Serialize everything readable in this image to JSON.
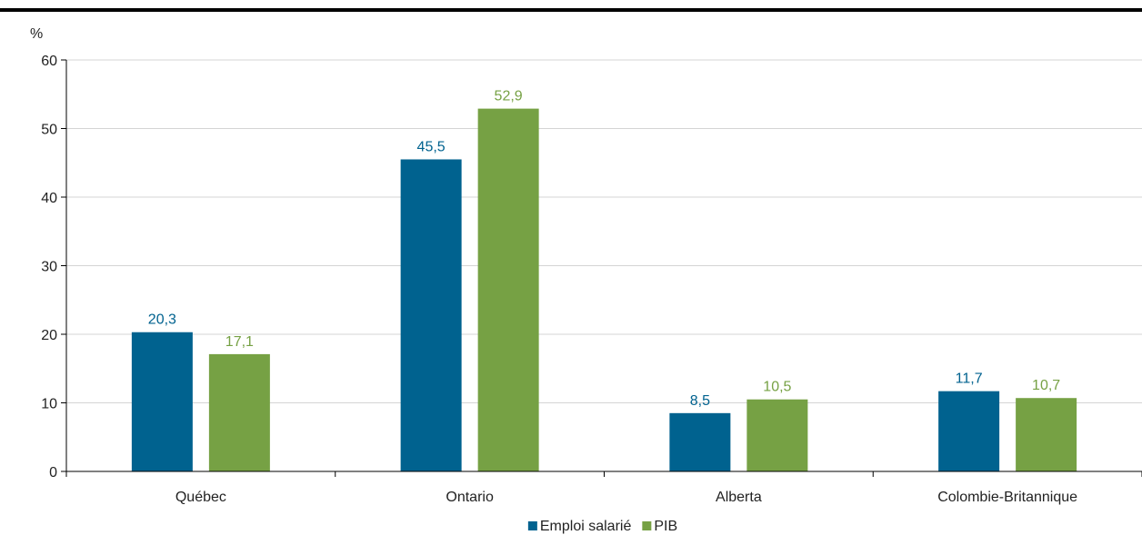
{
  "chart_data": {
    "type": "bar",
    "y_unit_label": "%",
    "categories": [
      "Québec",
      "Ontario",
      "Alberta",
      "Colombie-Britannique"
    ],
    "series": [
      {
        "name": "Emploi salarié",
        "color": "#00628f",
        "values": [
          20.3,
          45.5,
          8.5,
          11.7
        ],
        "labels": [
          "20,3",
          "45,5",
          "8,5",
          "11,7"
        ]
      },
      {
        "name": "PIB",
        "color": "#76a144",
        "values": [
          17.1,
          52.9,
          10.5,
          10.7
        ],
        "labels": [
          "17,1",
          "52,9",
          "10,5",
          "10,7"
        ]
      }
    ],
    "ylim": [
      0,
      60
    ],
    "yticks": [
      0,
      10,
      20,
      30,
      40,
      50,
      60
    ],
    "grid": true,
    "legend_position": "bottom"
  }
}
